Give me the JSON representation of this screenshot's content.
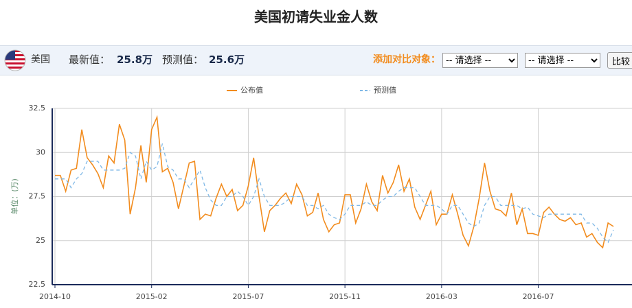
{
  "toolbar": {
    "country": "美国",
    "latest_label": "最新值：",
    "latest_value": "25.8万",
    "forecast_label": "预测值：",
    "forecast_value": "25.6万",
    "compare_label": "添加对比对象：",
    "select_placeholder": "-- 请选择 --",
    "button": "比较"
  },
  "chart_data": {
    "type": "line",
    "title": "美国初请失业金人数",
    "y_label": "单位：(万)",
    "categories": [
      "2014-10",
      null,
      null,
      null,
      null,
      null,
      null,
      null,
      null,
      null,
      null,
      null,
      null,
      null,
      null,
      null,
      null,
      null,
      "2015-02",
      null,
      null,
      null,
      null,
      null,
      null,
      null,
      null,
      null,
      null,
      null,
      null,
      null,
      null,
      null,
      null,
      null,
      "2015-07",
      null,
      null,
      null,
      null,
      null,
      null,
      null,
      null,
      null,
      null,
      null,
      null,
      null,
      null,
      null,
      null,
      null,
      "2015-11",
      null,
      null,
      null,
      null,
      null,
      null,
      null,
      null,
      null,
      null,
      null,
      null,
      null,
      null,
      null,
      null,
      null,
      "2016-03",
      null,
      null,
      null,
      null,
      null,
      null,
      null,
      null,
      null,
      null,
      null,
      null,
      null,
      null,
      null,
      null,
      null,
      "2016-07",
      null,
      null,
      null,
      null,
      null,
      null,
      null,
      null,
      null,
      null,
      null,
      null,
      null,
      null
    ],
    "series": [
      {
        "name": "公布值",
        "color": "#f28c1e",
        "dashed": false,
        "values": [
          28.7,
          28.7,
          27.8,
          29.0,
          29.1,
          31.3,
          29.7,
          29.3,
          28.8,
          28.0,
          29.8,
          29.4,
          31.6,
          30.7,
          26.5,
          28.0,
          30.4,
          28.3,
          31.3,
          32.0,
          28.9,
          29.1,
          28.3,
          26.8,
          28.1,
          29.4,
          29.5,
          26.2,
          26.5,
          26.4,
          27.4,
          28.2,
          27.5,
          27.9,
          26.7,
          27.0,
          28.1,
          29.7,
          27.5,
          25.5,
          26.7,
          27.0,
          27.4,
          27.7,
          27.1,
          28.2,
          27.6,
          26.4,
          26.6,
          27.7,
          26.2,
          25.5,
          25.9,
          26.0,
          27.6,
          27.6,
          26.0,
          26.8,
          28.2,
          27.2,
          26.7,
          28.7,
          27.7,
          28.3,
          29.3,
          27.8,
          28.5,
          26.9,
          26.2,
          27.0,
          27.8,
          25.9,
          26.5,
          26.5,
          27.6,
          26.5,
          25.3,
          24.7,
          25.8,
          27.4,
          29.4,
          27.8,
          26.8,
          26.7,
          26.4,
          27.7,
          25.9,
          26.8,
          25.4,
          25.4,
          25.3,
          26.6,
          26.9,
          26.5,
          26.2,
          26.1,
          26.3,
          25.9,
          26.0,
          25.2,
          25.4,
          24.9,
          24.6,
          26.0,
          25.8
        ]
      },
      {
        "name": "预测值",
        "color": "#7fb8e6",
        "dashed": true,
        "values": [
          28.5,
          28.5,
          28.5,
          28.0,
          28.5,
          28.8,
          29.5,
          29.5,
          29.5,
          29.0,
          29.0,
          29.0,
          29.0,
          29.1,
          30.0,
          29.8,
          28.5,
          29.5,
          29.0,
          29.2,
          30.5,
          29.2,
          29.0,
          28.5,
          28.5,
          28.0,
          28.5,
          29.0,
          28.0,
          27.3,
          27.0,
          27.0,
          27.5,
          27.5,
          27.8,
          27.5,
          27.0,
          27.5,
          28.5,
          27.5,
          27.0,
          27.0,
          27.0,
          27.2,
          27.5,
          27.5,
          27.5,
          27.0,
          27.0,
          26.8,
          27.0,
          26.5,
          26.3,
          26.2,
          26.5,
          27.0,
          27.0,
          27.0,
          27.2,
          27.0,
          27.0,
          27.3,
          27.5,
          27.5,
          27.8,
          28.0,
          28.0,
          28.0,
          27.5,
          27.0,
          27.0,
          27.0,
          26.8,
          26.5,
          27.0,
          27.0,
          26.5,
          26.0,
          25.8,
          26.0,
          27.0,
          27.5,
          27.5,
          27.0,
          27.0,
          27.0,
          27.0,
          26.8,
          26.9,
          26.5,
          26.4,
          26.3,
          26.5,
          26.5,
          26.5,
          26.5,
          26.5,
          26.5,
          26.5,
          26.0,
          26.0,
          25.7,
          25.2,
          24.9,
          25.6
        ]
      }
    ],
    "ylim": [
      22.5,
      32.5
    ],
    "yticks": [
      22.5,
      25,
      27.5,
      30,
      32.5
    ],
    "grid": true
  }
}
